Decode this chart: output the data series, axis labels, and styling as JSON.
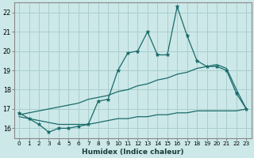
{
  "title": "",
  "xlabel": "Humidex (Indice chaleur)",
  "ylabel": "",
  "x_ticks": [
    0,
    1,
    2,
    3,
    4,
    5,
    6,
    7,
    8,
    9,
    10,
    11,
    12,
    13,
    14,
    15,
    16,
    17,
    18,
    19,
    20,
    21,
    22,
    23
  ],
  "ylim": [
    15.5,
    22.5
  ],
  "xlim": [
    -0.5,
    23.5
  ],
  "yticks": [
    16,
    17,
    18,
    19,
    20,
    21,
    22
  ],
  "bg_color": "#cce8e8",
  "grid_color": "#aacece",
  "line_color": "#1a6b6b",
  "series_main": {
    "x": [
      0,
      1,
      2,
      3,
      4,
      5,
      6,
      7,
      8,
      9,
      10,
      11,
      12,
      13,
      14,
      15,
      16,
      17,
      18,
      19,
      20,
      21,
      22,
      23
    ],
    "y": [
      16.8,
      16.5,
      16.2,
      15.8,
      16.0,
      16.0,
      16.1,
      16.2,
      17.4,
      17.5,
      19.0,
      19.9,
      20.0,
      21.0,
      19.8,
      19.8,
      22.3,
      20.8,
      19.5,
      19.2,
      19.2,
      19.0,
      17.8,
      17.0
    ]
  },
  "series_upper": {
    "x": [
      0,
      1,
      2,
      3,
      4,
      5,
      6,
      7,
      8,
      9,
      10,
      11,
      12,
      13,
      14,
      15,
      16,
      17,
      18,
      19,
      20,
      21,
      22,
      23
    ],
    "y": [
      16.7,
      16.8,
      16.9,
      17.0,
      17.1,
      17.2,
      17.3,
      17.5,
      17.6,
      17.7,
      17.9,
      18.0,
      18.2,
      18.3,
      18.5,
      18.6,
      18.8,
      18.9,
      19.1,
      19.2,
      19.3,
      19.1,
      18.0,
      17.0
    ]
  },
  "series_lower": {
    "x": [
      0,
      1,
      2,
      3,
      4,
      5,
      6,
      7,
      8,
      9,
      10,
      11,
      12,
      13,
      14,
      15,
      16,
      17,
      18,
      19,
      20,
      21,
      22,
      23
    ],
    "y": [
      16.6,
      16.5,
      16.4,
      16.3,
      16.2,
      16.2,
      16.2,
      16.2,
      16.3,
      16.4,
      16.5,
      16.5,
      16.6,
      16.6,
      16.7,
      16.7,
      16.8,
      16.8,
      16.9,
      16.9,
      16.9,
      16.9,
      16.9,
      17.0
    ]
  }
}
